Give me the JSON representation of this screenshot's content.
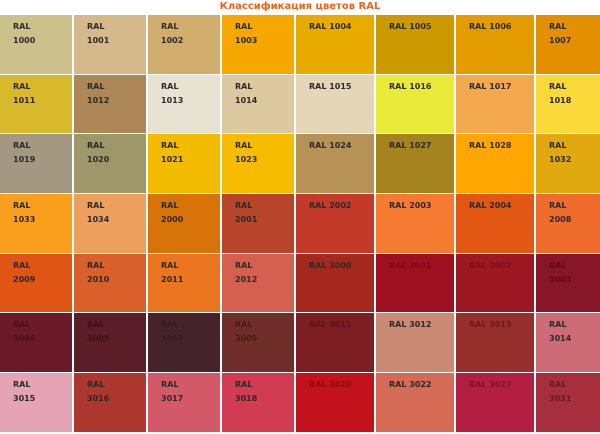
{
  "title": "Классификация цветов RAL",
  "swatches": [
    {
      "label": "RAL\n1000",
      "color": "#cdc18b",
      "text_color": "#2a2a2a"
    },
    {
      "label": "RAL\n1001",
      "color": "#d6b98a",
      "text_color": "#2a2a2a"
    },
    {
      "label": "RAL\n1002",
      "color": "#d2ae6e",
      "text_color": "#2a2a2a"
    },
    {
      "label": "RAL\n1003",
      "color": "#f7a800",
      "text_color": "#2a2a2a"
    },
    {
      "label": "RAL 1004",
      "color": "#e9ab00",
      "text_color": "#2a2a2a"
    },
    {
      "label": "RAL 1005",
      "color": "#cc9a00",
      "text_color": "#2a2a2a"
    },
    {
      "label": "RAL 1006",
      "color": "#e39b00",
      "text_color": "#2a2a2a"
    },
    {
      "label": "RAL\n1007",
      "color": "#e48f00",
      "text_color": "#2a2a2a"
    },
    {
      "label": "RAL\n1011",
      "color": "#d8b92c",
      "text_color": "#2a2a2a"
    },
    {
      "label": "RAL\n1012",
      "color": "#ad8757",
      "text_color": "#2a2a2a"
    },
    {
      "label": "RAL\n1013",
      "color": "#e8e2d2",
      "text_color": "#2a2a2a"
    },
    {
      "label": "RAL\n1014",
      "color": "#ddc9a0",
      "text_color": "#2a2a2a"
    },
    {
      "label": "RAL 1015",
      "color": "#e6d6b8",
      "text_color": "#2a2a2a"
    },
    {
      "label": "RAL 1016",
      "color": "#eaea3b",
      "text_color": "#2a2a2a"
    },
    {
      "label": "RAL 1017",
      "color": "#f5a94f",
      "text_color": "#2a2a2a"
    },
    {
      "label": "RAL\n1018",
      "color": "#fbd93b",
      "text_color": "#2a2a2a"
    },
    {
      "label": "RAL\n1019",
      "color": "#a49883",
      "text_color": "#2a2a2a"
    },
    {
      "label": "RAL\n1020",
      "color": "#9d9769",
      "text_color": "#2a2a2a"
    },
    {
      "label": "RAL\n1021",
      "color": "#f3bc00",
      "text_color": "#2a2a2a"
    },
    {
      "label": "RAL\n1023",
      "color": "#f6bd00",
      "text_color": "#2a2a2a"
    },
    {
      "label": "RAL 1024",
      "color": "#b79257",
      "text_color": "#2a2a2a"
    },
    {
      "label": "RAL 1027",
      "color": "#a5841f",
      "text_color": "#2a2a2a"
    },
    {
      "label": "RAL 1028",
      "color": "#ffa600",
      "text_color": "#2a2a2a"
    },
    {
      "label": "RAL\n1032",
      "color": "#e1a90f",
      "text_color": "#2a2a2a"
    },
    {
      "label": "RAL\n1033",
      "color": "#fba01e",
      "text_color": "#2a2a2a"
    },
    {
      "label": "RAL\n1034",
      "color": "#ed9f5d",
      "text_color": "#2a2a2a"
    },
    {
      "label": "RAL\n2000",
      "color": "#d8730a",
      "text_color": "#2a2a2a"
    },
    {
      "label": "RAL\n2001",
      "color": "#b8452a",
      "text_color": "#2a2a2a"
    },
    {
      "label": "RAL 2002",
      "color": "#c3392a",
      "text_color": "#2a2a2a"
    },
    {
      "label": "RAL 2003",
      "color": "#f77a33",
      "text_color": "#2a2a2a"
    },
    {
      "label": "RAL 2004",
      "color": "#e35715",
      "text_color": "#2a2a2a"
    },
    {
      "label": "RAL\n2008",
      "color": "#f06c2d",
      "text_color": "#2a2a2a"
    },
    {
      "label": "RAL\n2009",
      "color": "#e05513",
      "text_color": "#2a2a2a"
    },
    {
      "label": "RAL\n2010",
      "color": "#d9602b",
      "text_color": "#2a2a2a"
    },
    {
      "label": "RAL\n2011",
      "color": "#ec7620",
      "text_color": "#2a2a2a"
    },
    {
      "label": "RAL\n2012",
      "color": "#d6604f",
      "text_color": "#2a2a2a"
    },
    {
      "label": "RAL 3000",
      "color": "#a5281f",
      "text_color": "#2a2a2a"
    },
    {
      "label": "RAL 3001",
      "color": "#9e1020",
      "text_color": "#7a0c18"
    },
    {
      "label": "RAL 3002",
      "color": "#9c1923",
      "text_color": "#7a1018"
    },
    {
      "label": "RAL\n3003",
      "color": "#861628",
      "text_color": "#5a0c18"
    },
    {
      "label": "RAL\n3004",
      "color": "#6b1a2b",
      "text_color": "#4a1018"
    },
    {
      "label": "RAL\n3005",
      "color": "#5b1e28",
      "text_color": "#3a1018"
    },
    {
      "label": "RAL\n3007",
      "color": "#45232a",
      "text_color": "#3a1a20"
    },
    {
      "label": "RAL\n3009",
      "color": "#6f2e2a",
      "text_color": "#4a1a18"
    },
    {
      "label": "RAL 3011",
      "color": "#7c1e22",
      "text_color": "#5a1418"
    },
    {
      "label": "RAL 3012",
      "color": "#cb8a74",
      "text_color": "#2a2a2a"
    },
    {
      "label": "RAL 3013",
      "color": "#97302c",
      "text_color": "#6a1a1a"
    },
    {
      "label": "RAL\n3014",
      "color": "#cd6c77",
      "text_color": "#2a2a2a"
    },
    {
      "label": "RAL\n3015",
      "color": "#e5a4b5",
      "text_color": "#2a2a2a"
    },
    {
      "label": "RAL\n3016",
      "color": "#ab372e",
      "text_color": "#2a2a2a"
    },
    {
      "label": "RAL\n3017",
      "color": "#d35968",
      "text_color": "#2a2a2a"
    },
    {
      "label": "RAL\n3018",
      "color": "#d13c52",
      "text_color": "#2a2a2a"
    },
    {
      "label": "RAL 3020",
      "color": "#c3121b",
      "text_color": "#8a0c12"
    },
    {
      "label": "RAL 3022",
      "color": "#d56a55",
      "text_color": "#2a2a2a"
    },
    {
      "label": "RAL 3027",
      "color": "#b31f42",
      "text_color": "#7a1428"
    },
    {
      "label": "RAL\n3031",
      "color": "#a72e3c",
      "text_color": "#6a1a22"
    }
  ]
}
